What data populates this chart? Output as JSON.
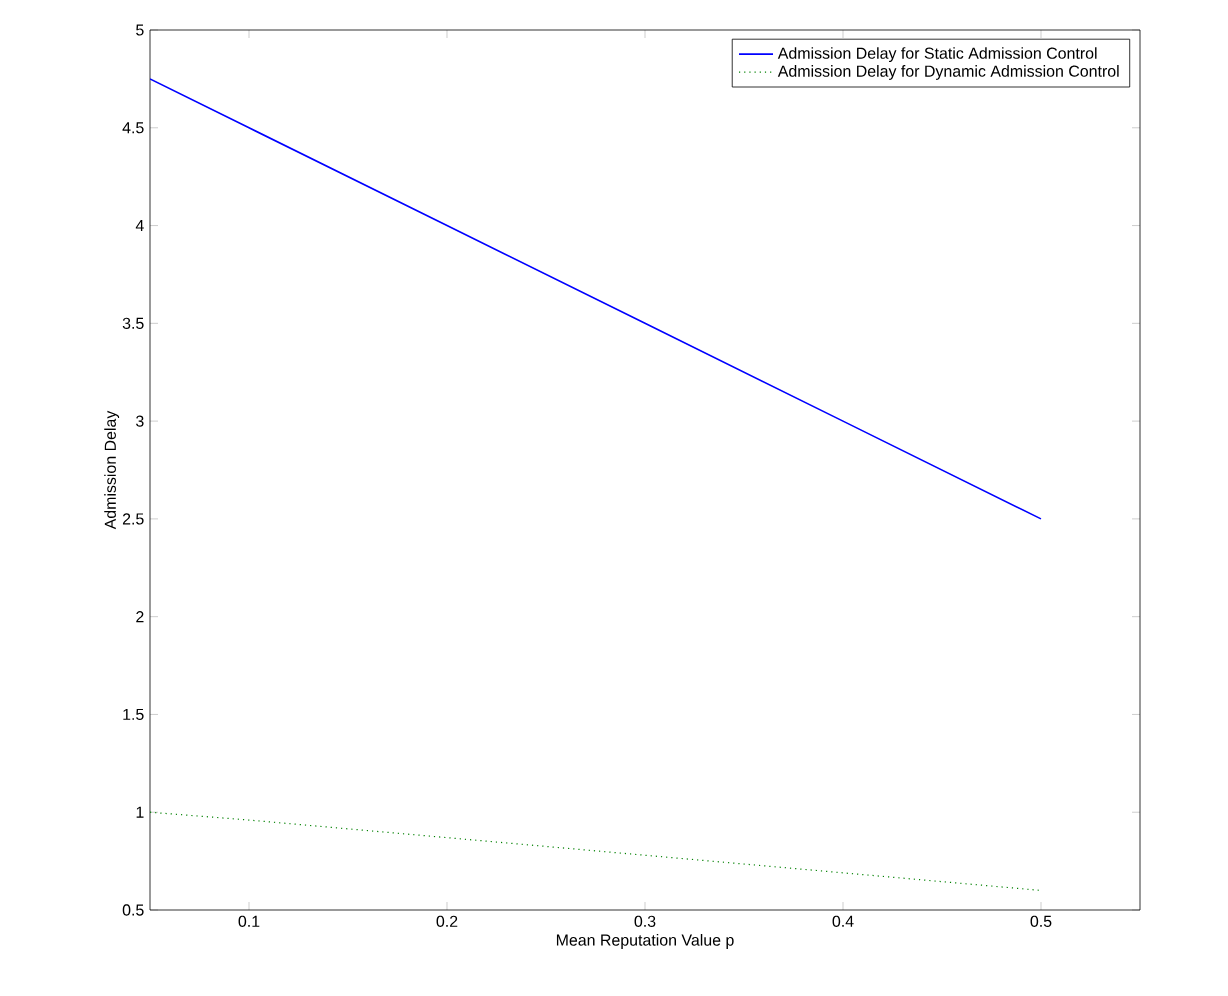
{
  "chart_data": {
    "type": "line",
    "xlabel": "Mean Reputation Value p",
    "ylabel": "Admission Delay",
    "xlim": [
      0.05,
      0.55
    ],
    "xticks": [
      0.1,
      0.2,
      0.3,
      0.4,
      0.5
    ],
    "ylim": [
      0.5,
      5
    ],
    "yticks": [
      0.5,
      1,
      1.5,
      2,
      2.5,
      3,
      3.5,
      4,
      4.5,
      5
    ],
    "grid": false,
    "legend": "top right",
    "marker": "none",
    "x": [
      0.05,
      0.1,
      0.2,
      0.3,
      0.4,
      0.5
    ],
    "series": [
      {
        "name": "Admission Delay for Static Admission Control",
        "color": "#0000ff",
        "values": [
          4.75,
          4.5,
          4.0,
          3.5,
          3.0,
          2.5
        ],
        "line_style": "solid"
      },
      {
        "name": "Admission Delay for Dynamic Admission Control",
        "color": "#008000",
        "values": [
          1.0,
          0.96,
          0.87,
          0.78,
          0.69,
          0.6
        ],
        "line_style": "dotted"
      }
    ]
  }
}
